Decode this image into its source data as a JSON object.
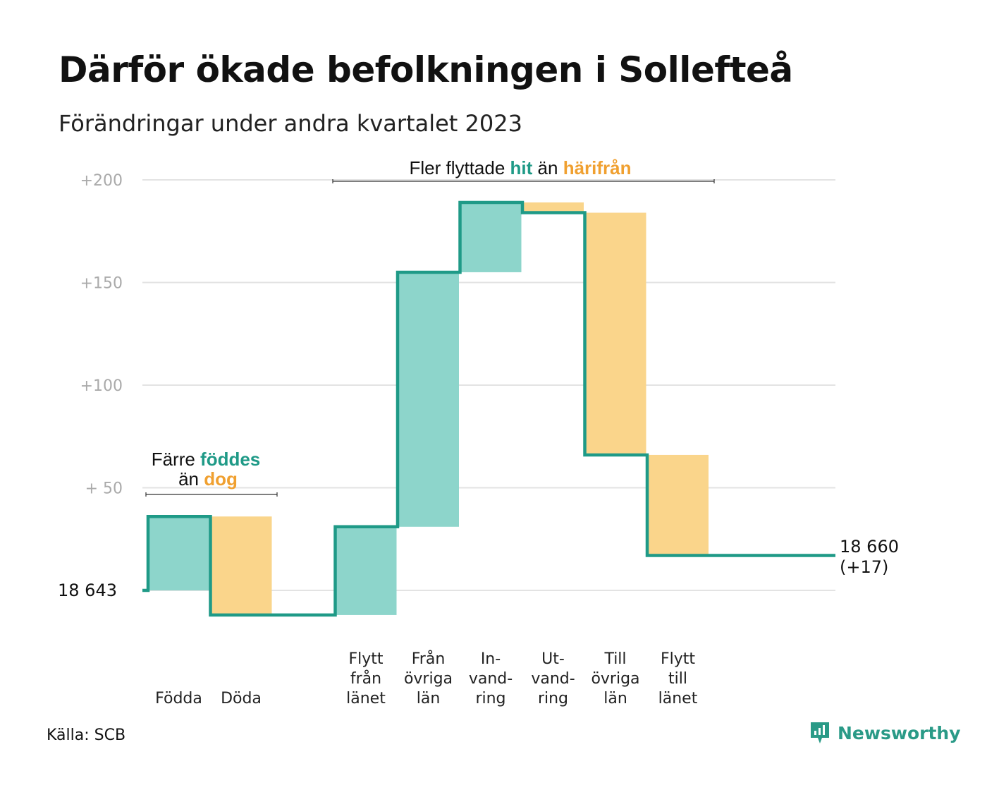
{
  "title": "Därför ökade befolkningen i Sollefteå",
  "subtitle": "Förändringar under andra kvartalet 2023",
  "source": "Källa: SCB",
  "brand": "Newsworthy",
  "colors": {
    "increase": "#8dd5cb",
    "decrease": "#fad58b",
    "line": "#1f9a87",
    "accent_increase": "#1f9a87",
    "accent_decrease": "#f0a030",
    "grid": "#e3e3e3",
    "tick": "#aaaaaa"
  },
  "annotations": {
    "births": {
      "line1": "Färre",
      "hl1": "föddes",
      "line2": "än",
      "hl2": "dog"
    },
    "moves": {
      "pre": "Fler flyttade",
      "hl1": "hit",
      "mid": "än",
      "hl2": "härifrån"
    }
  },
  "chart_data": {
    "type": "waterfall",
    "start_label": "18  643",
    "start_value": 18643,
    "end_label": "18 660",
    "end_change_label": "(+17)",
    "end_value": 18660,
    "ylim": [
      -20,
      205
    ],
    "y_ticks": [
      {
        "value": 200,
        "label": "+200"
      },
      {
        "value": 150,
        "label": "+150"
      },
      {
        "value": 100,
        "label": "+100"
      },
      {
        "value": 50,
        "label": "+  50"
      }
    ],
    "categories": [
      {
        "label": "Födda",
        "lines": [
          "Födda"
        ],
        "change": 36
      },
      {
        "label": "Döda",
        "lines": [
          "Döda"
        ],
        "change": -48
      },
      {
        "label": "",
        "lines": [],
        "change": 0
      },
      {
        "label": "Flytt från länet",
        "lines": [
          "Flytt",
          "från",
          "länet"
        ],
        "change": 43
      },
      {
        "label": "Från övriga län",
        "lines": [
          "Från",
          "övriga",
          "län"
        ],
        "change": 124
      },
      {
        "label": "In-vand-ring",
        "lines": [
          "In-",
          "vand-",
          "ring"
        ],
        "change": 34
      },
      {
        "label": "Ut-vand-ring",
        "lines": [
          "Ut-",
          "vand-",
          "ring"
        ],
        "change": -5
      },
      {
        "label": "Till övriga län",
        "lines": [
          "Till",
          "övriga",
          "län"
        ],
        "change": -118
      },
      {
        "label": "Flytt till länet",
        "lines": [
          "Flytt",
          "till",
          "länet"
        ],
        "change": -49
      }
    ]
  }
}
